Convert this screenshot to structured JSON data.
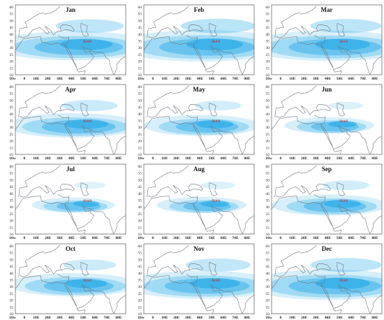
{
  "iran_label": "IRAN",
  "x_ticks": [
    "10w",
    "0",
    "10E",
    "20E",
    "30E",
    "40E",
    "50E",
    "60E",
    "70E",
    "80E"
  ],
  "y_ticks": [
    "60",
    "55",
    "50",
    "45",
    "40",
    "35",
    "30",
    "25",
    "20",
    "15",
    "10"
  ],
  "shading_color": "#1aa6e6",
  "coast_color": "#6e7480",
  "panels": [
    {
      "month": "Jan",
      "intensity": 0.9
    },
    {
      "month": "Feb",
      "intensity": 1.0
    },
    {
      "month": "Mar",
      "intensity": 0.95
    },
    {
      "month": "Apr",
      "intensity": 0.7
    },
    {
      "month": "May",
      "intensity": 0.55
    },
    {
      "month": "Jun",
      "intensity": 0.35
    },
    {
      "month": "Jul",
      "intensity": 0.3
    },
    {
      "month": "Aug",
      "intensity": 0.35
    },
    {
      "month": "Sep",
      "intensity": 0.55
    },
    {
      "month": "Oct",
      "intensity": 0.65
    },
    {
      "month": "Nov",
      "intensity": 0.85
    },
    {
      "month": "Dec",
      "intensity": 0.95
    }
  ]
}
